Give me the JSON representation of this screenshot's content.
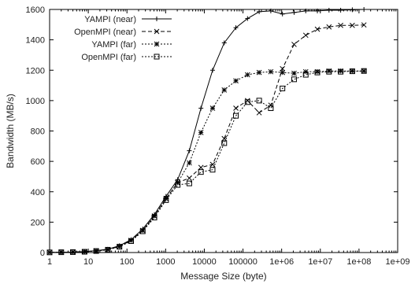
{
  "chart_data": {
    "type": "line",
    "title": "",
    "xlabel": "Message Size (byte)",
    "ylabel": "Bandwidth (MB/s)",
    "x_scale": "log",
    "xlim": [
      1,
      1000000000
    ],
    "ylim": [
      0,
      1600
    ],
    "x_ticks": [
      1,
      10,
      100,
      1000,
      10000,
      100000,
      1000000,
      10000000,
      100000000,
      1000000000
    ],
    "x_tick_labels": [
      "1",
      "10",
      "100",
      "1000",
      "10000",
      "100000",
      "1e+06",
      "1e+07",
      "1e+08",
      "1e+09"
    ],
    "y_ticks": [
      0,
      200,
      400,
      600,
      800,
      1000,
      1200,
      1400,
      1600
    ],
    "y_tick_labels": [
      "0",
      "200",
      "400",
      "600",
      "800",
      "1000",
      "1200",
      "1400",
      "1600"
    ],
    "grid": false,
    "legend_position": "top-left",
    "x": [
      1,
      2,
      4,
      8,
      16,
      32,
      64,
      128,
      256,
      512,
      1024,
      2048,
      4096,
      8192,
      16384,
      32768,
      65536,
      131072,
      262144,
      524288,
      1048576,
      2097152,
      4194304,
      8388608,
      16777216,
      33554432,
      67108864,
      134217728
    ],
    "series": [
      {
        "name": "YAMPI (near)",
        "marker": "plus",
        "dash": "solid",
        "values": [
          1,
          2,
          3,
          6,
          12,
          22,
          45,
          85,
          155,
          250,
          370,
          480,
          670,
          950,
          1200,
          1380,
          1480,
          1540,
          1585,
          1590,
          1570,
          1580,
          1590,
          1590,
          1595,
          1595,
          1598,
          1600
        ]
      },
      {
        "name": "OpenMPI (near)",
        "marker": "cross",
        "dash": "dashed",
        "values": [
          1,
          2,
          3,
          6,
          11,
          20,
          40,
          80,
          145,
          240,
          355,
          460,
          490,
          560,
          580,
          750,
          950,
          1000,
          920,
          970,
          1210,
          1370,
          1430,
          1470,
          1485,
          1495,
          1495,
          1498
        ]
      },
      {
        "name": "YAMPI (far)",
        "marker": "asterisk",
        "dash": "dotted",
        "values": [
          1,
          2,
          3,
          6,
          11,
          20,
          40,
          80,
          145,
          240,
          355,
          460,
          590,
          790,
          950,
          1070,
          1130,
          1170,
          1185,
          1190,
          1185,
          1180,
          1190,
          1190,
          1195,
          1195,
          1195,
          1195
        ]
      },
      {
        "name": "OpenMPI (far)",
        "marker": "square",
        "dash": "dotted",
        "values": [
          1,
          2,
          3,
          5,
          10,
          18,
          38,
          75,
          140,
          230,
          345,
          445,
          455,
          530,
          545,
          720,
          900,
          990,
          1000,
          950,
          1080,
          1140,
          1170,
          1185,
          1190,
          1190,
          1193,
          1195
        ]
      }
    ]
  }
}
